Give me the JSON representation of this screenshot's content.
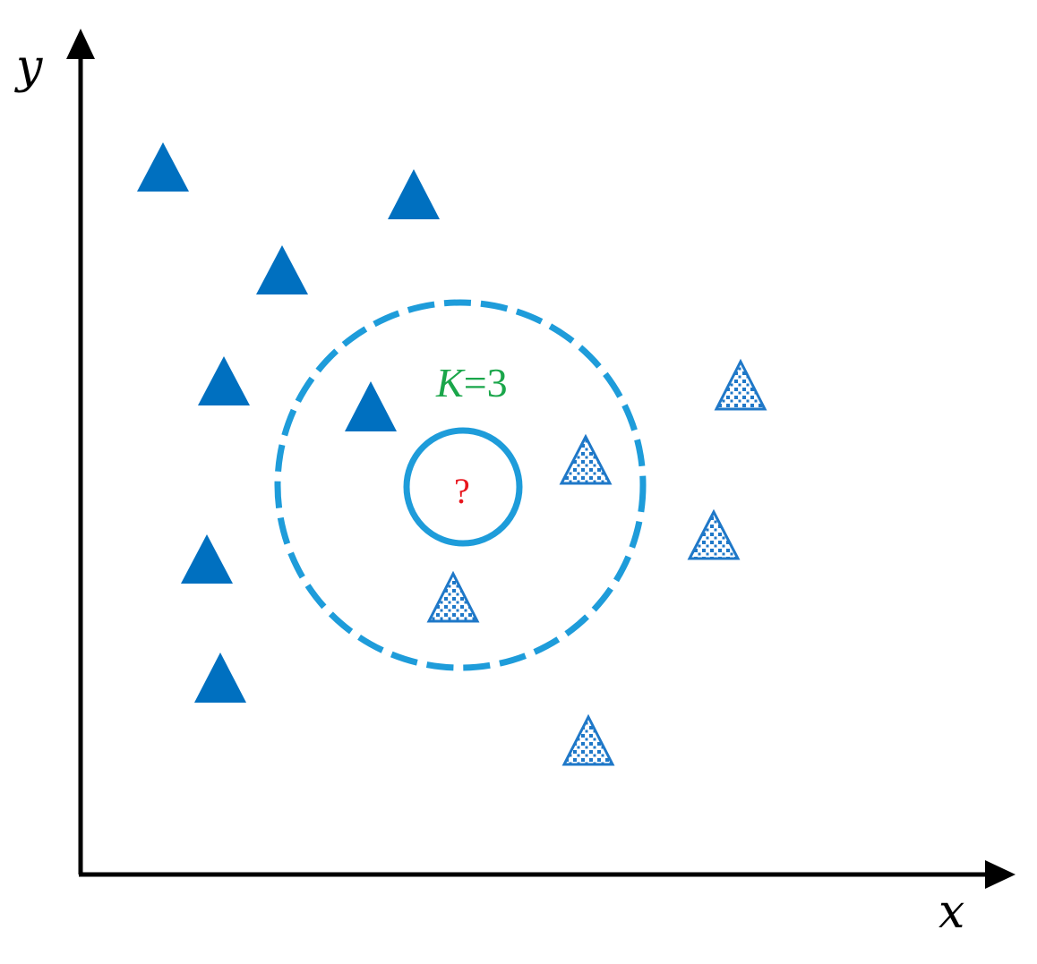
{
  "axes": {
    "x_label": "x",
    "y_label": "y"
  },
  "k_label": {
    "variable": "K",
    "equals_value": "=3"
  },
  "query_point": {
    "symbol": "?"
  },
  "colors": {
    "axis": "#000000",
    "class_a_fill": "#0070C0",
    "class_b_stroke": "#1F78C8",
    "circle": "#1E9CDA",
    "k_label": "#1AA64A",
    "query_mark": "#E8161E"
  },
  "legend_icons": {
    "class_a": "solid-triangle-icon",
    "class_b": "dotted-triangle-icon"
  }
}
